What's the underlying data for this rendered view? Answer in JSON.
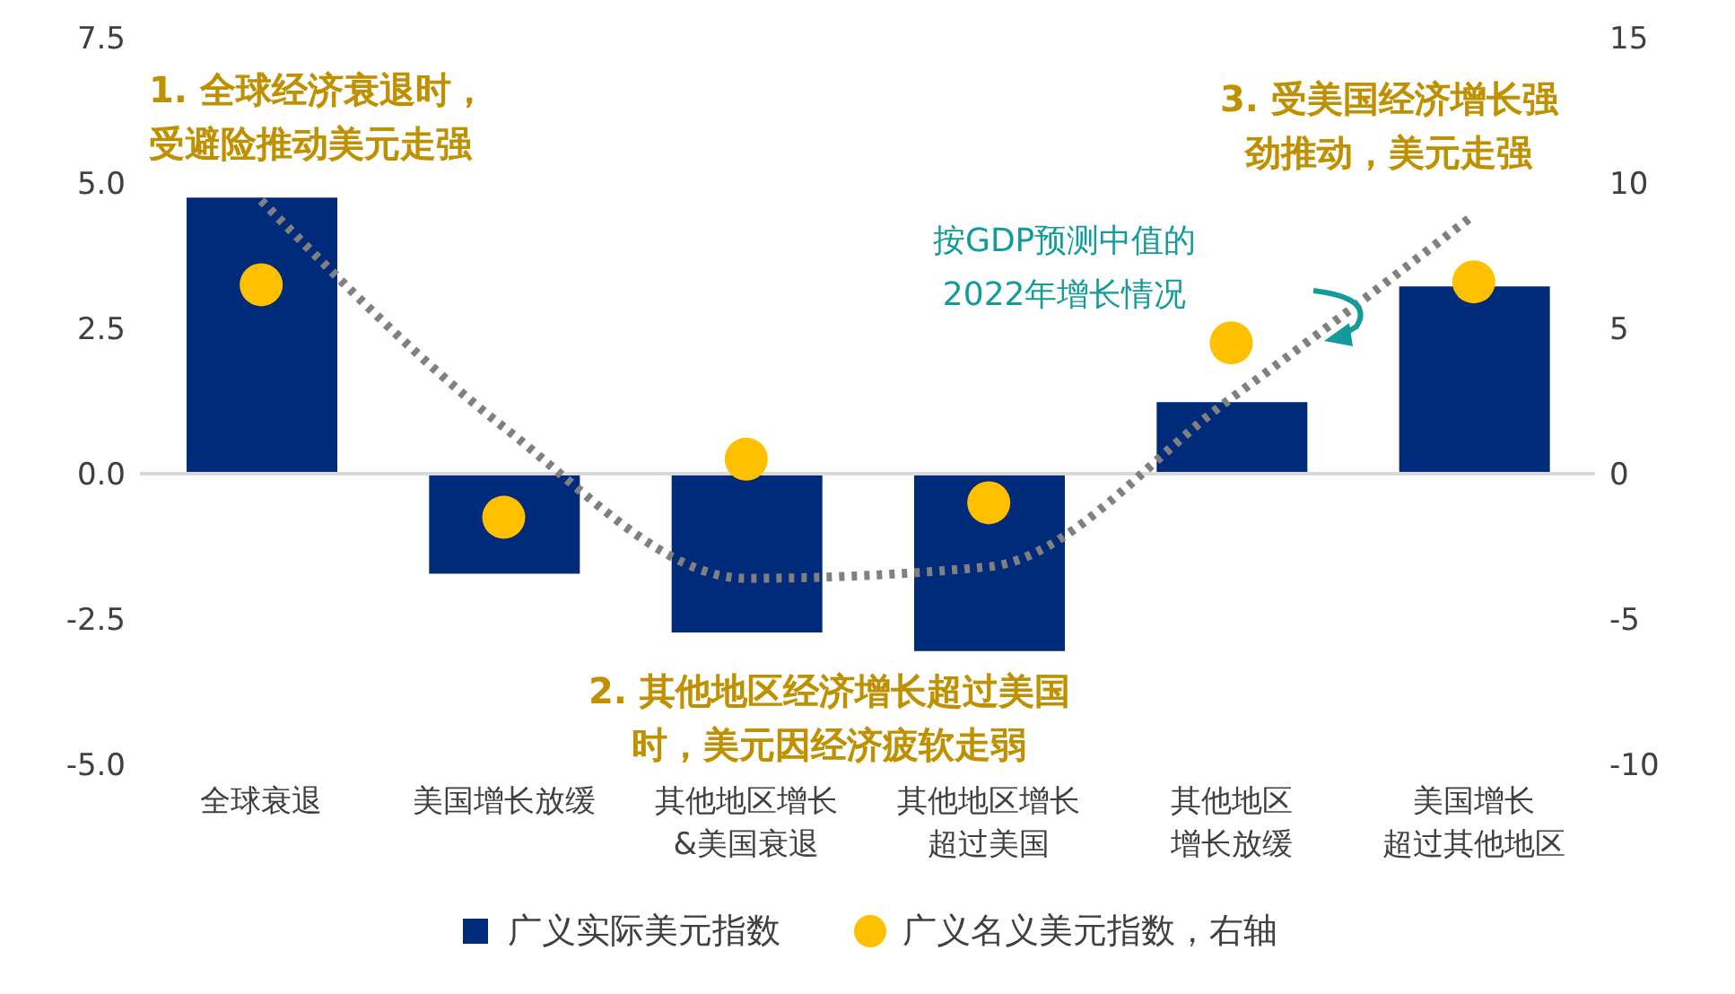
{
  "chart_data": {
    "type": "bar",
    "categories": [
      "全球衰退",
      "美国增长放缓",
      "其他地区增长&美国衰退",
      "其他地区增长超过美国",
      "其他地区增长放缓",
      "美国增长超过其他地区"
    ],
    "series": [
      {
        "name": "广义实际美元指数",
        "color": "#002a7a",
        "values": [
          4.75,
          -1.72,
          -2.73,
          -3.05,
          1.23,
          3.22
        ]
      },
      {
        "name": "广义名义美元指数，右轴",
        "type": "scatter",
        "axis": "y2",
        "color": "#ffc000",
        "values": [
          6.5,
          -1.5,
          0.5,
          -1.0,
          4.5,
          6.6
        ]
      },
      {
        "type": "line",
        "color": "#808080",
        "line_style": "dotted",
        "values": [
          4.7,
          0.8,
          -1.8,
          -1.6,
          1.3,
          4.45
        ]
      }
    ],
    "ylim": [
      -5,
      7.5
    ],
    "yticks": [
      {
        "value": -5,
        "label": "-5.0"
      },
      {
        "value": -2.5,
        "label": "-2.5"
      },
      {
        "value": 0,
        "label": "0.0"
      },
      {
        "value": 2.5,
        "label": "2.5"
      },
      {
        "value": 5,
        "label": "5.0"
      },
      {
        "value": 7.5,
        "label": "7.5"
      }
    ],
    "y2lim": [
      -10,
      15
    ],
    "y2ticks": [
      -10,
      -5,
      0,
      5,
      10,
      15
    ],
    "ref_lines": [
      {
        "axis": "y",
        "value": 0,
        "color": "#d9d9d9"
      }
    ],
    "annotations": [
      "1. 全球经济衰退时，受避险推动美元走强",
      "2. 其他地区经济增长超过美国时，美元因经济疲软走弱",
      "3. 受美国经济增长强劲推动，美元走强",
      "按GDP预测中值的2022年增长情况"
    ],
    "legend": "bottom"
  }
}
